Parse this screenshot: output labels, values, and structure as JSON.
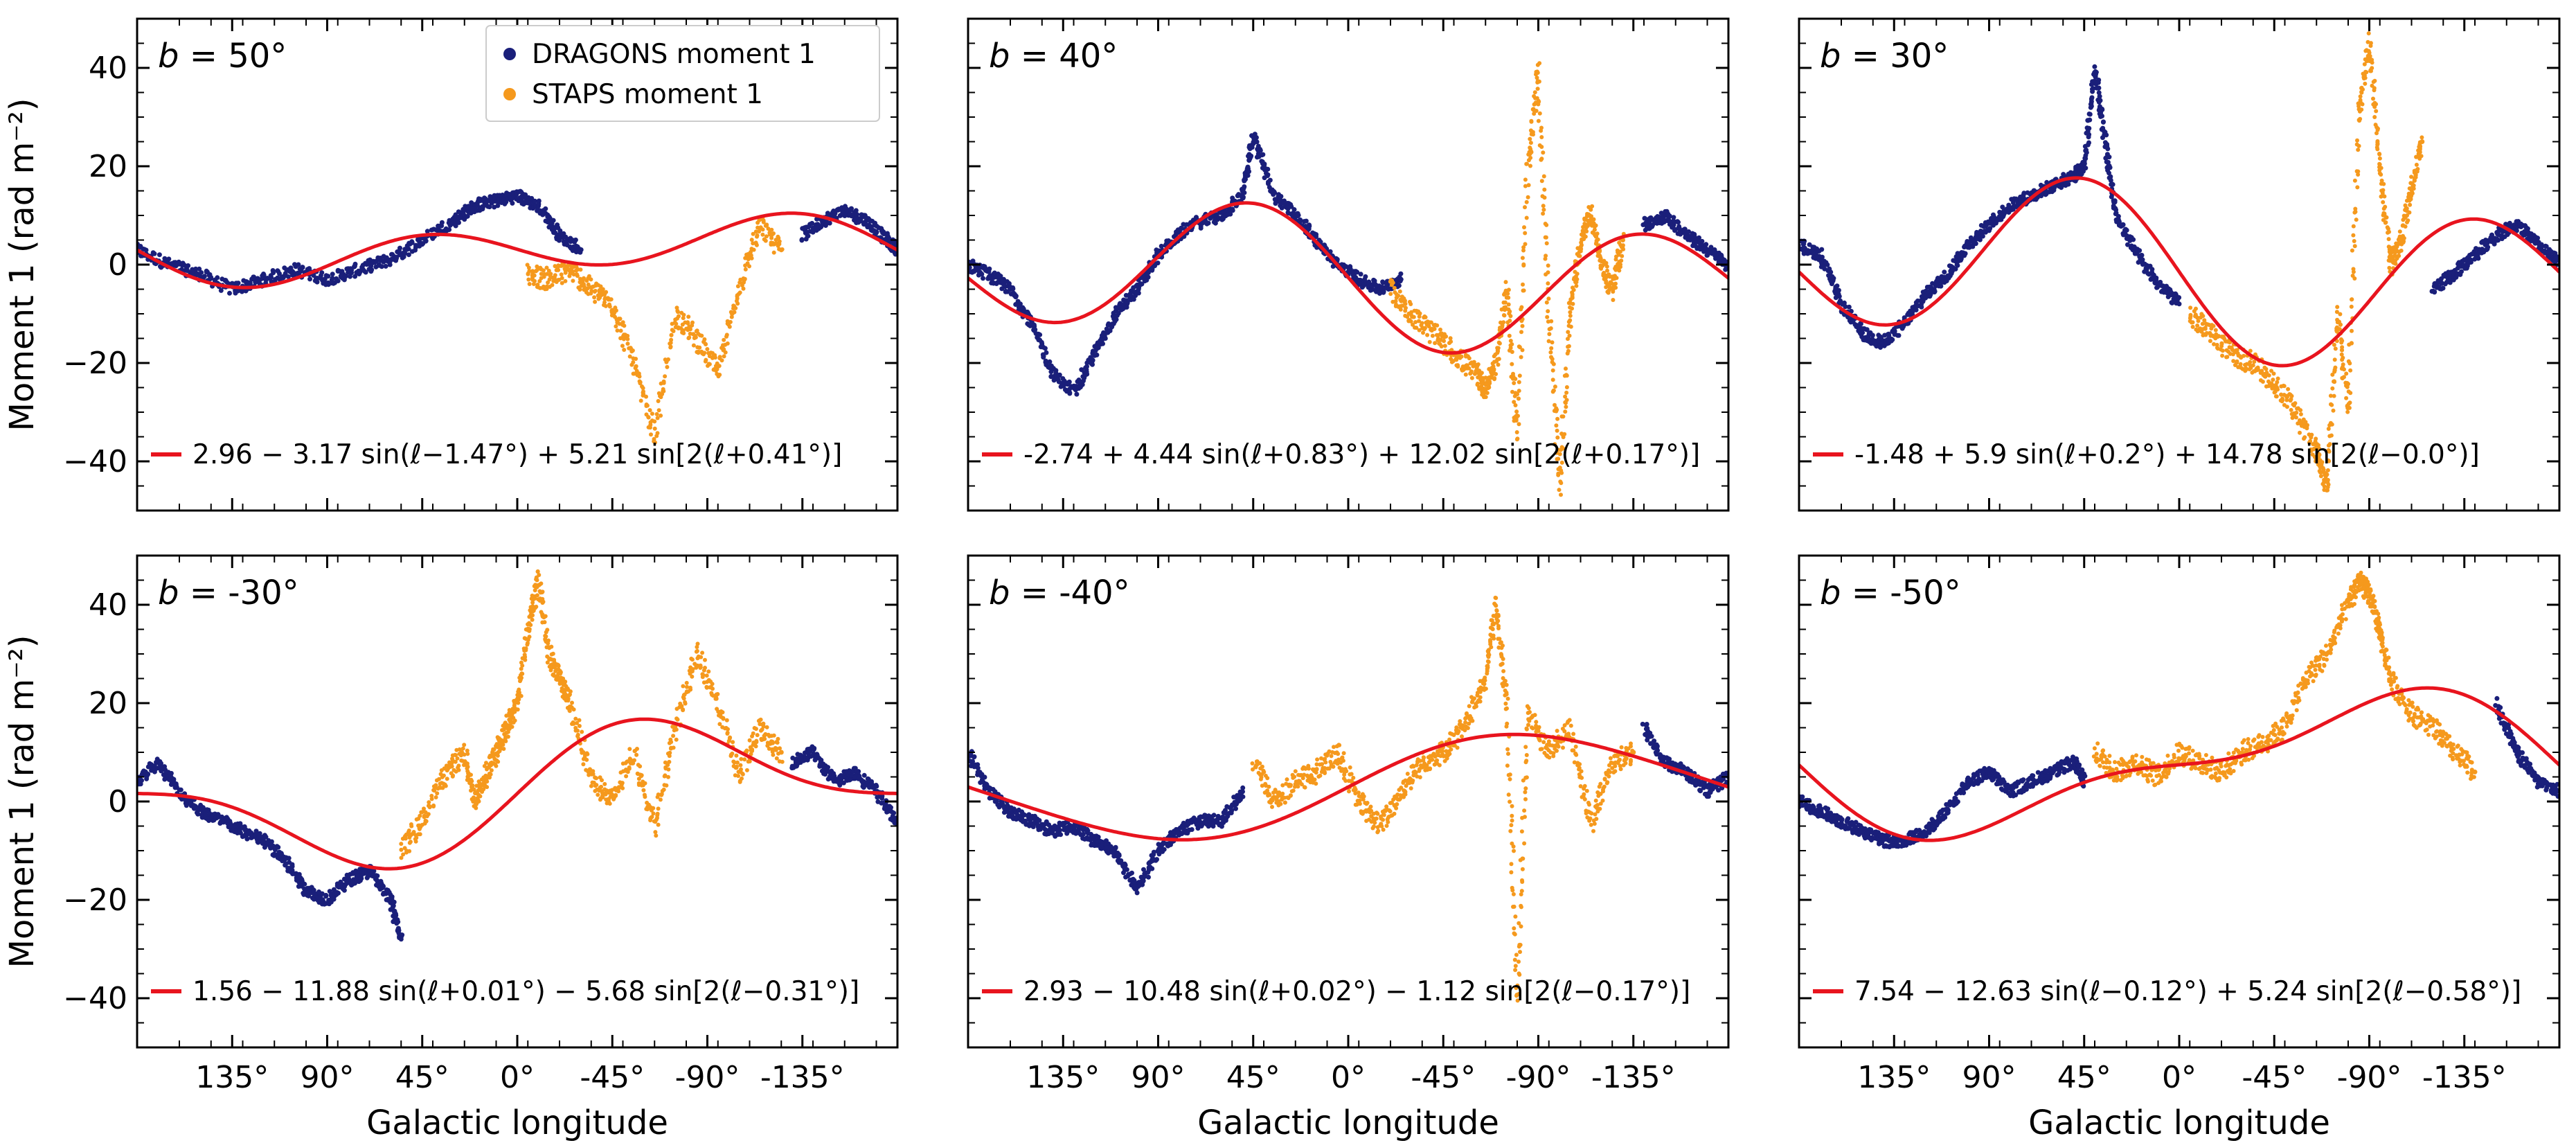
{
  "figure": {
    "xlabel": "Galactic longitude",
    "ylabel": "Moment 1 (rad m⁻²)",
    "legend": [
      {
        "label": "DRAGONS moment 1",
        "color": "#1a1f7a"
      },
      {
        "label": "STAPS moment 1",
        "color": "#f5991d"
      }
    ],
    "fit_color": "#e8141e",
    "ylim": [
      -50,
      50
    ],
    "yticks": [
      40,
      20,
      0,
      -20,
      -40
    ],
    "ytick_labels": [
      "40",
      "20",
      "0",
      "−20",
      "−40"
    ],
    "xlim": [
      180,
      -180
    ],
    "xticks": [
      135,
      90,
      45,
      0,
      -45,
      -90,
      -135
    ],
    "xtick_labels": [
      "135°",
      "90°",
      "45°",
      "0°",
      "-45°",
      "-90°",
      "-135°"
    ]
  },
  "chart_data": [
    {
      "type": "scatter",
      "title": "b = 50°",
      "b_text": "b",
      "b_value": " = 50°",
      "fit": {
        "a": 2.96,
        "b": -3.17,
        "phi1": -1.47,
        "c": 5.21,
        "phi2": 0.41
      },
      "fit_label": "2.96 − 3.17 sin(ℓ−1.47°) + 5.21 sin[2(ℓ+0.41°)]",
      "series": [
        {
          "name": "DRAGONS moment 1",
          "x": [
            180,
            165,
            150,
            135,
            120,
            105,
            90,
            75,
            60,
            45,
            30,
            20,
            10,
            0,
            -10,
            -20,
            -30,
            -135,
            -145,
            -155,
            -165,
            -175,
            -180
          ],
          "y": [
            3,
            0,
            -2,
            -5,
            -3,
            -1,
            -3,
            -1,
            1,
            5,
            9,
            12,
            13,
            14,
            12,
            6,
            3,
            6,
            9,
            11,
            9,
            5,
            3
          ]
        },
        {
          "name": "STAPS moment 1",
          "x": [
            -5,
            -15,
            -25,
            -35,
            -45,
            -55,
            -65,
            -75,
            -85,
            -95,
            -105,
            -115,
            -125
          ],
          "y": [
            -2,
            -3,
            -1,
            -5,
            -8,
            -20,
            -35,
            -10,
            -15,
            -22,
            -5,
            8,
            3
          ]
        }
      ]
    },
    {
      "type": "scatter",
      "title": "b = 40°",
      "b_text": "b",
      "b_value": " = 40°",
      "fit": {
        "a": -2.74,
        "b": 4.44,
        "phi1": 0.83,
        "c": 12.02,
        "phi2": 0.17
      },
      "fit_label": "-2.74 + 4.44 sin(ℓ+0.83°) + 12.02 sin[2(ℓ+0.17°)]",
      "series": [
        {
          "name": "DRAGONS moment 1",
          "x": [
            180,
            170,
            160,
            150,
            140,
            130,
            120,
            110,
            100,
            90,
            75,
            60,
            50,
            45,
            35,
            25,
            15,
            5,
            -5,
            -15,
            -25,
            -140,
            -150,
            -160,
            -170,
            -180
          ],
          "y": [
            0,
            -2,
            -5,
            -12,
            -22,
            -26,
            -18,
            -10,
            -5,
            2,
            8,
            10,
            14,
            26,
            14,
            10,
            5,
            0,
            -3,
            -5,
            -3,
            8,
            10,
            6,
            3,
            0
          ]
        },
        {
          "name": "STAPS moment 1",
          "x": [
            -20,
            -30,
            -40,
            -50,
            -60,
            -65,
            -70,
            -75,
            -80,
            -85,
            -90,
            -95,
            -100,
            -105,
            -110,
            -115,
            -120,
            -125,
            -130
          ],
          "y": [
            -5,
            -10,
            -14,
            -18,
            -22,
            -25,
            -20,
            -5,
            -35,
            20,
            40,
            -10,
            -45,
            -10,
            5,
            10,
            0,
            -5,
            5
          ]
        }
      ]
    },
    {
      "type": "scatter",
      "title": "b = 30°",
      "b_text": "b",
      "b_value": " = 30°",
      "fit": {
        "a": -1.48,
        "b": 5.9,
        "phi1": 0.2,
        "c": 14.78,
        "phi2": 0.0
      },
      "fit_label": "-1.48 + 5.9 sin(ℓ+0.2°) + 14.78 sin[2(ℓ−0.0°)]",
      "series": [
        {
          "name": "DRAGONS moment 1",
          "x": [
            180,
            170,
            160,
            150,
            140,
            130,
            120,
            110,
            100,
            90,
            80,
            70,
            60,
            50,
            45,
            40,
            35,
            30,
            20,
            10,
            0,
            -120,
            -130,
            -140,
            -150,
            -160,
            -170,
            -180
          ],
          "y": [
            4,
            2,
            -8,
            -14,
            -16,
            -12,
            -6,
            -2,
            4,
            8,
            12,
            14,
            16,
            18,
            20,
            40,
            25,
            10,
            2,
            -4,
            -8,
            -5,
            -2,
            2,
            6,
            8,
            4,
            0
          ]
        },
        {
          "name": "STAPS moment 1",
          "x": [
            -5,
            -15,
            -25,
            -35,
            -45,
            -55,
            -65,
            -70,
            -75,
            -80,
            -85,
            -90,
            -95,
            -100,
            -105,
            -110,
            -115
          ],
          "y": [
            -10,
            -14,
            -18,
            -20,
            -24,
            -30,
            -38,
            -45,
            -10,
            -30,
            30,
            45,
            20,
            0,
            5,
            15,
            25
          ]
        }
      ]
    },
    {
      "type": "scatter",
      "title": "b = -30°",
      "b_text": "b",
      "b_value": " = -30°",
      "fit": {
        "a": 1.56,
        "b": -11.88,
        "phi1": 0.01,
        "c": -5.68,
        "phi2": -0.31
      },
      "fit_label": "1.56 − 11.88 sin(ℓ+0.01°) − 5.68 sin[2(ℓ−0.31°)]",
      "series": [
        {
          "name": "DRAGONS moment 1",
          "x": [
            180,
            170,
            160,
            150,
            140,
            130,
            120,
            110,
            100,
            90,
            80,
            70,
            60,
            55,
            -130,
            -140,
            -150,
            -160,
            -170,
            -180
          ],
          "y": [
            4,
            8,
            2,
            -2,
            -4,
            -6,
            -8,
            -12,
            -18,
            -20,
            -16,
            -14,
            -20,
            -28,
            8,
            10,
            4,
            6,
            2,
            -4
          ]
        },
        {
          "name": "STAPS moment 1",
          "x": [
            55,
            45,
            35,
            25,
            20,
            15,
            10,
            5,
            0,
            -5,
            -10,
            -15,
            -20,
            -25,
            -35,
            -45,
            -55,
            -65,
            -75,
            -85,
            -95,
            -105,
            -115,
            -125
          ],
          "y": [
            -10,
            -4,
            5,
            10,
            0,
            5,
            10,
            15,
            20,
            35,
            45,
            30,
            25,
            20,
            5,
            0,
            10,
            -5,
            15,
            30,
            20,
            5,
            15,
            10
          ]
        }
      ]
    },
    {
      "type": "scatter",
      "title": "b = -40°",
      "b_text": "b",
      "b_value": " = -40°",
      "fit": {
        "a": 2.93,
        "b": -10.48,
        "phi1": 0.02,
        "c": -1.12,
        "phi2": -0.17
      },
      "fit_label": "2.93 − 10.48 sin(ℓ+0.02°) − 1.12 sin[2(ℓ−0.17°)]",
      "series": [
        {
          "name": "DRAGONS moment 1",
          "x": [
            180,
            170,
            160,
            150,
            140,
            130,
            120,
            110,
            100,
            90,
            80,
            70,
            60,
            50,
            -140,
            -150,
            -160,
            -170,
            -180
          ],
          "y": [
            10,
            2,
            -2,
            -4,
            -6,
            -5,
            -8,
            -10,
            -18,
            -10,
            -6,
            -4,
            -4,
            2,
            15,
            8,
            6,
            2,
            5
          ]
        },
        {
          "name": "STAPS moment 1",
          "x": [
            45,
            35,
            25,
            15,
            5,
            -5,
            -15,
            -25,
            -35,
            -45,
            -55,
            -65,
            -70,
            -75,
            -80,
            -85,
            -95,
            -105,
            -115,
            -125,
            -135
          ],
          "y": [
            8,
            0,
            4,
            6,
            10,
            0,
            -5,
            2,
            8,
            10,
            15,
            25,
            40,
            20,
            -40,
            18,
            10,
            15,
            -5,
            8,
            10
          ]
        }
      ]
    },
    {
      "type": "scatter",
      "title": "b = -50°",
      "b_text": "b",
      "b_value": " = -50°",
      "fit": {
        "a": 7.54,
        "b": -12.63,
        "phi1": -0.12,
        "c": 5.24,
        "phi2": -0.58
      },
      "fit_label": "7.54 − 12.63 sin(ℓ−0.12°) + 5.24 sin[2(ℓ−0.58°)]",
      "series": [
        {
          "name": "DRAGONS moment 1",
          "x": [
            180,
            170,
            160,
            150,
            140,
            130,
            120,
            110,
            100,
            90,
            80,
            70,
            60,
            50,
            45,
            -150,
            -160,
            -170,
            -180
          ],
          "y": [
            0,
            -2,
            -4,
            -6,
            -8,
            -8,
            -6,
            -2,
            4,
            6,
            2,
            4,
            6,
            8,
            4,
            20,
            10,
            4,
            2
          ]
        },
        {
          "name": "STAPS moment 1",
          "x": [
            40,
            30,
            20,
            10,
            0,
            -10,
            -20,
            -30,
            -40,
            -50,
            -60,
            -70,
            -80,
            -85,
            -90,
            -95,
            -100,
            -110,
            -120,
            -130,
            -140
          ],
          "y": [
            10,
            6,
            8,
            5,
            10,
            8,
            6,
            10,
            12,
            15,
            25,
            30,
            40,
            45,
            42,
            35,
            25,
            18,
            15,
            10,
            6
          ]
        }
      ]
    }
  ]
}
